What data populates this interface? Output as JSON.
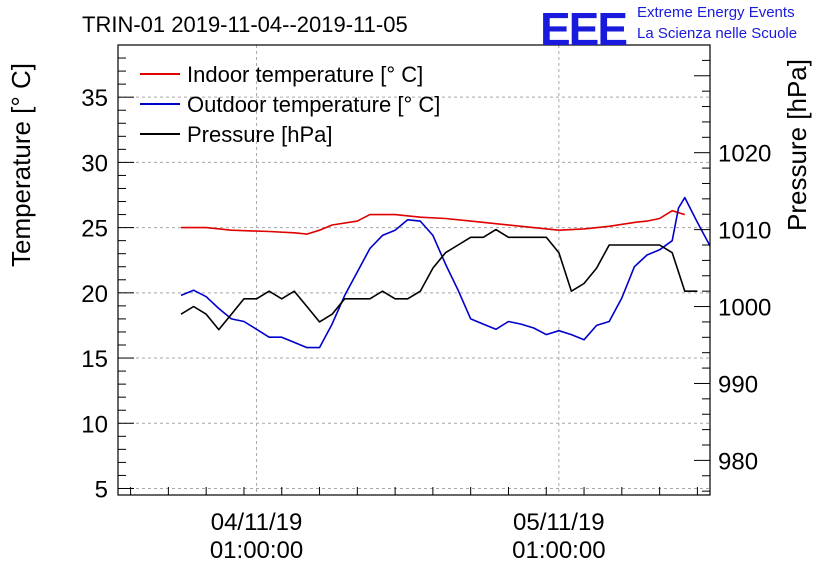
{
  "header": {
    "logo_letters": "EEE",
    "logo_line1": "Extreme Energy Events",
    "logo_line2": "La Scienza nelle Scuole"
  },
  "colors": {
    "indoor": "#e00000",
    "outdoor": "#0000cc",
    "pressure": "#000000",
    "logo": "#1a1adc"
  },
  "chart_data": {
    "type": "line",
    "title": "TRIN-01 2019-11-04--2019-11-05",
    "ylabel": "Temperature [° C]",
    "y2label": "Pressure [hPa]",
    "ylim": [
      4.5,
      39
    ],
    "y2lim": [
      975.5,
      1034
    ],
    "xlim": [
      "2019-11-03 14:00",
      "2019-11-05 13:00"
    ],
    "grid": true,
    "legend_position": "top-left",
    "yticks": [
      5,
      10,
      15,
      20,
      25,
      30,
      35
    ],
    "y2ticks": [
      980,
      990,
      1000,
      1010,
      1020
    ],
    "xticks": [
      {
        "x": "2019-11-04 01:00",
        "line1": "04/11/19",
        "line2": "01:00:00"
      },
      {
        "x": "2019-11-05 01:00",
        "line1": "05/11/19",
        "line2": "01:00:00"
      }
    ],
    "series": [
      {
        "name": "Indoor temperature [° C]",
        "axis": "left",
        "x": [
          "2019-11-03 19:00",
          "2019-11-03 21:00",
          "2019-11-03 23:00",
          "2019-11-04 02:00",
          "2019-11-04 04:00",
          "2019-11-04 05:00",
          "2019-11-04 06:00",
          "2019-11-04 07:00",
          "2019-11-04 09:00",
          "2019-11-04 10:00",
          "2019-11-04 12:00",
          "2019-11-04 14:00",
          "2019-11-04 16:00",
          "2019-11-04 18:00",
          "2019-11-04 20:00",
          "2019-11-04 22:00",
          "2019-11-05 01:00",
          "2019-11-05 03:00",
          "2019-11-05 05:00",
          "2019-11-05 07:00",
          "2019-11-05 08:00",
          "2019-11-05 09:00",
          "2019-11-05 10:00",
          "2019-11-05 11:00"
        ],
        "y": [
          25.0,
          25.0,
          24.8,
          24.7,
          24.6,
          24.5,
          24.8,
          25.2,
          25.5,
          26.0,
          26.0,
          25.8,
          25.7,
          25.5,
          25.3,
          25.1,
          24.8,
          24.9,
          25.1,
          25.4,
          25.5,
          25.7,
          26.3,
          26.0
        ]
      },
      {
        "name": "Outdoor temperature [° C]",
        "axis": "left",
        "x": [
          "2019-11-03 19:00",
          "2019-11-03 20:00",
          "2019-11-03 21:00",
          "2019-11-03 22:00",
          "2019-11-03 23:00",
          "2019-11-04 00:00",
          "2019-11-04 01:00",
          "2019-11-04 02:00",
          "2019-11-04 03:00",
          "2019-11-04 04:00",
          "2019-11-04 05:00",
          "2019-11-04 06:00",
          "2019-11-04 07:00",
          "2019-11-04 08:00",
          "2019-11-04 09:00",
          "2019-11-04 10:00",
          "2019-11-04 11:00",
          "2019-11-04 12:00",
          "2019-11-04 13:00",
          "2019-11-04 14:00",
          "2019-11-04 15:00",
          "2019-11-04 16:00",
          "2019-11-04 17:00",
          "2019-11-04 18:00",
          "2019-11-04 19:00",
          "2019-11-04 20:00",
          "2019-11-04 21:00",
          "2019-11-04 22:00",
          "2019-11-04 23:00",
          "2019-11-05 00:00",
          "2019-11-05 01:00",
          "2019-11-05 02:00",
          "2019-11-05 03:00",
          "2019-11-05 04:00",
          "2019-11-05 05:00",
          "2019-11-05 06:00",
          "2019-11-05 07:00",
          "2019-11-05 08:00",
          "2019-11-05 09:00",
          "2019-11-05 10:00",
          "2019-11-05 10:30",
          "2019-11-05 11:00",
          "2019-11-05 12:00",
          "2019-11-05 13:00"
        ],
        "y": [
          19.8,
          20.2,
          19.7,
          18.8,
          18.0,
          17.8,
          17.2,
          16.6,
          16.6,
          16.2,
          15.8,
          15.8,
          17.6,
          19.8,
          21.6,
          23.4,
          24.4,
          24.8,
          25.6,
          25.5,
          24.4,
          22.2,
          20.2,
          18.0,
          17.6,
          17.2,
          17.8,
          17.6,
          17.3,
          16.8,
          17.1,
          16.8,
          16.4,
          17.5,
          17.8,
          19.6,
          22.0,
          22.9,
          23.3,
          24.0,
          26.5,
          27.3,
          25.4,
          23.6
        ]
      },
      {
        "name": "Pressure [hPa]",
        "axis": "right",
        "x": [
          "2019-11-03 19:00",
          "2019-11-03 20:00",
          "2019-11-03 21:00",
          "2019-11-03 22:00",
          "2019-11-03 23:00",
          "2019-11-04 00:00",
          "2019-11-04 01:00",
          "2019-11-04 02:00",
          "2019-11-04 03:00",
          "2019-11-04 04:00",
          "2019-11-04 05:00",
          "2019-11-04 06:00",
          "2019-11-04 07:00",
          "2019-11-04 08:00",
          "2019-11-04 09:00",
          "2019-11-04 10:00",
          "2019-11-04 11:00",
          "2019-11-04 12:00",
          "2019-11-04 13:00",
          "2019-11-04 14:00",
          "2019-11-04 15:00",
          "2019-11-04 16:00",
          "2019-11-04 17:00",
          "2019-11-04 18:00",
          "2019-11-04 19:00",
          "2019-11-04 20:00",
          "2019-11-04 21:00",
          "2019-11-04 22:00",
          "2019-11-04 23:00",
          "2019-11-05 00:00",
          "2019-11-05 01:00",
          "2019-11-05 02:00",
          "2019-11-05 03:00",
          "2019-11-05 04:00",
          "2019-11-05 05:00",
          "2019-11-05 06:00",
          "2019-11-05 07:00",
          "2019-11-05 08:00",
          "2019-11-05 09:00",
          "2019-11-05 10:00",
          "2019-11-05 11:00",
          "2019-11-05 12:00"
        ],
        "y": [
          999,
          1000,
          999,
          997,
          999,
          1001,
          1001,
          1002,
          1001,
          1002,
          1000,
          998,
          999,
          1001,
          1001,
          1001,
          1002,
          1001,
          1001,
          1002,
          1005,
          1007,
          1008,
          1009,
          1009,
          1010,
          1009,
          1009,
          1009,
          1009,
          1007,
          1002,
          1003,
          1005,
          1008,
          1008,
          1008,
          1008,
          1008,
          1007,
          1002,
          1002
        ]
      }
    ]
  }
}
